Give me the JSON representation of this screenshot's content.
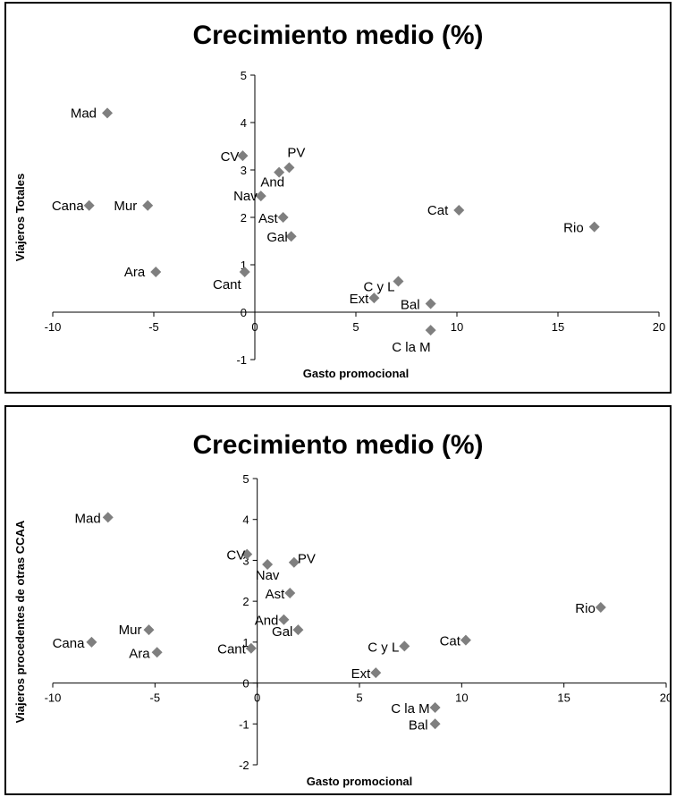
{
  "chart_data": [
    {
      "type": "scatter",
      "title": "Crecimiento medio (%)",
      "xlabel": "Gasto promocional",
      "ylabel": "Viajeros Totales",
      "xlim": [
        -10,
        20
      ],
      "ylim": [
        -1,
        5
      ],
      "xticks": [
        "-10",
        "-5",
        "0",
        "5",
        "10",
        "15",
        "20"
      ],
      "yticks": [
        "-1",
        "0",
        "1",
        "2",
        "3",
        "4",
        "5"
      ],
      "marker_color": "#7f7f7f",
      "points": [
        {
          "label": "Mad",
          "x": -7.3,
          "y": 4.2
        },
        {
          "label": "CV",
          "x": -0.6,
          "y": 3.3
        },
        {
          "label": "PV",
          "x": 1.7,
          "y": 3.05
        },
        {
          "label": "And",
          "x": 1.2,
          "y": 2.95
        },
        {
          "label": "Nav",
          "x": 0.3,
          "y": 2.45
        },
        {
          "label": "Cana",
          "x": -8.2,
          "y": 2.25
        },
        {
          "label": "Mur",
          "x": -5.3,
          "y": 2.25
        },
        {
          "label": "Ast",
          "x": 1.4,
          "y": 2.0
        },
        {
          "label": "Gal",
          "x": 1.8,
          "y": 1.6
        },
        {
          "label": "Cat",
          "x": 10.1,
          "y": 2.15
        },
        {
          "label": "Rio",
          "x": 16.8,
          "y": 1.8
        },
        {
          "label": "Ara",
          "x": -4.9,
          "y": 0.85
        },
        {
          "label": "Cant",
          "x": -0.5,
          "y": 0.85
        },
        {
          "label": "C y L",
          "x": 7.1,
          "y": 0.65
        },
        {
          "label": "Ext",
          "x": 5.9,
          "y": 0.3
        },
        {
          "label": "Bal",
          "x": 8.7,
          "y": 0.18
        },
        {
          "label": "C la M",
          "x": 8.7,
          "y": -0.38
        }
      ]
    },
    {
      "type": "scatter",
      "title": "Crecimiento medio (%)",
      "xlabel": "Gasto promocional",
      "ylabel": "Viajeros procedentes de otras CCAA",
      "xlim": [
        -10,
        20
      ],
      "ylim": [
        -2,
        5
      ],
      "xticks": [
        "-10",
        "-5",
        "0",
        "5",
        "10",
        "15",
        "20"
      ],
      "yticks": [
        "-2",
        "-1",
        "0",
        "1",
        "2",
        "3",
        "4",
        "5"
      ],
      "marker_color": "#7f7f7f",
      "points": [
        {
          "label": "Mad",
          "x": -7.3,
          "y": 4.05
        },
        {
          "label": "CV",
          "x": -0.5,
          "y": 3.15
        },
        {
          "label": "Nav",
          "x": 0.5,
          "y": 2.9
        },
        {
          "label": "PV",
          "x": 1.8,
          "y": 2.95
        },
        {
          "label": "Ast",
          "x": 1.6,
          "y": 2.2
        },
        {
          "label": "And",
          "x": 1.3,
          "y": 1.55
        },
        {
          "label": "Gal",
          "x": 2.0,
          "y": 1.3
        },
        {
          "label": "Mur",
          "x": -5.3,
          "y": 1.3
        },
        {
          "label": "Cana",
          "x": -8.1,
          "y": 1.0
        },
        {
          "label": "Ara",
          "x": -4.9,
          "y": 0.75
        },
        {
          "label": "Cant",
          "x": -0.3,
          "y": 0.85
        },
        {
          "label": "C y L",
          "x": 7.2,
          "y": 0.9
        },
        {
          "label": "Cat",
          "x": 10.2,
          "y": 1.05
        },
        {
          "label": "Rio",
          "x": 16.8,
          "y": 1.85
        },
        {
          "label": "Ext",
          "x": 5.8,
          "y": 0.25
        },
        {
          "label": "C la M",
          "x": 8.7,
          "y": -0.6
        },
        {
          "label": "Bal",
          "x": 8.7,
          "y": -1.0
        }
      ]
    }
  ]
}
